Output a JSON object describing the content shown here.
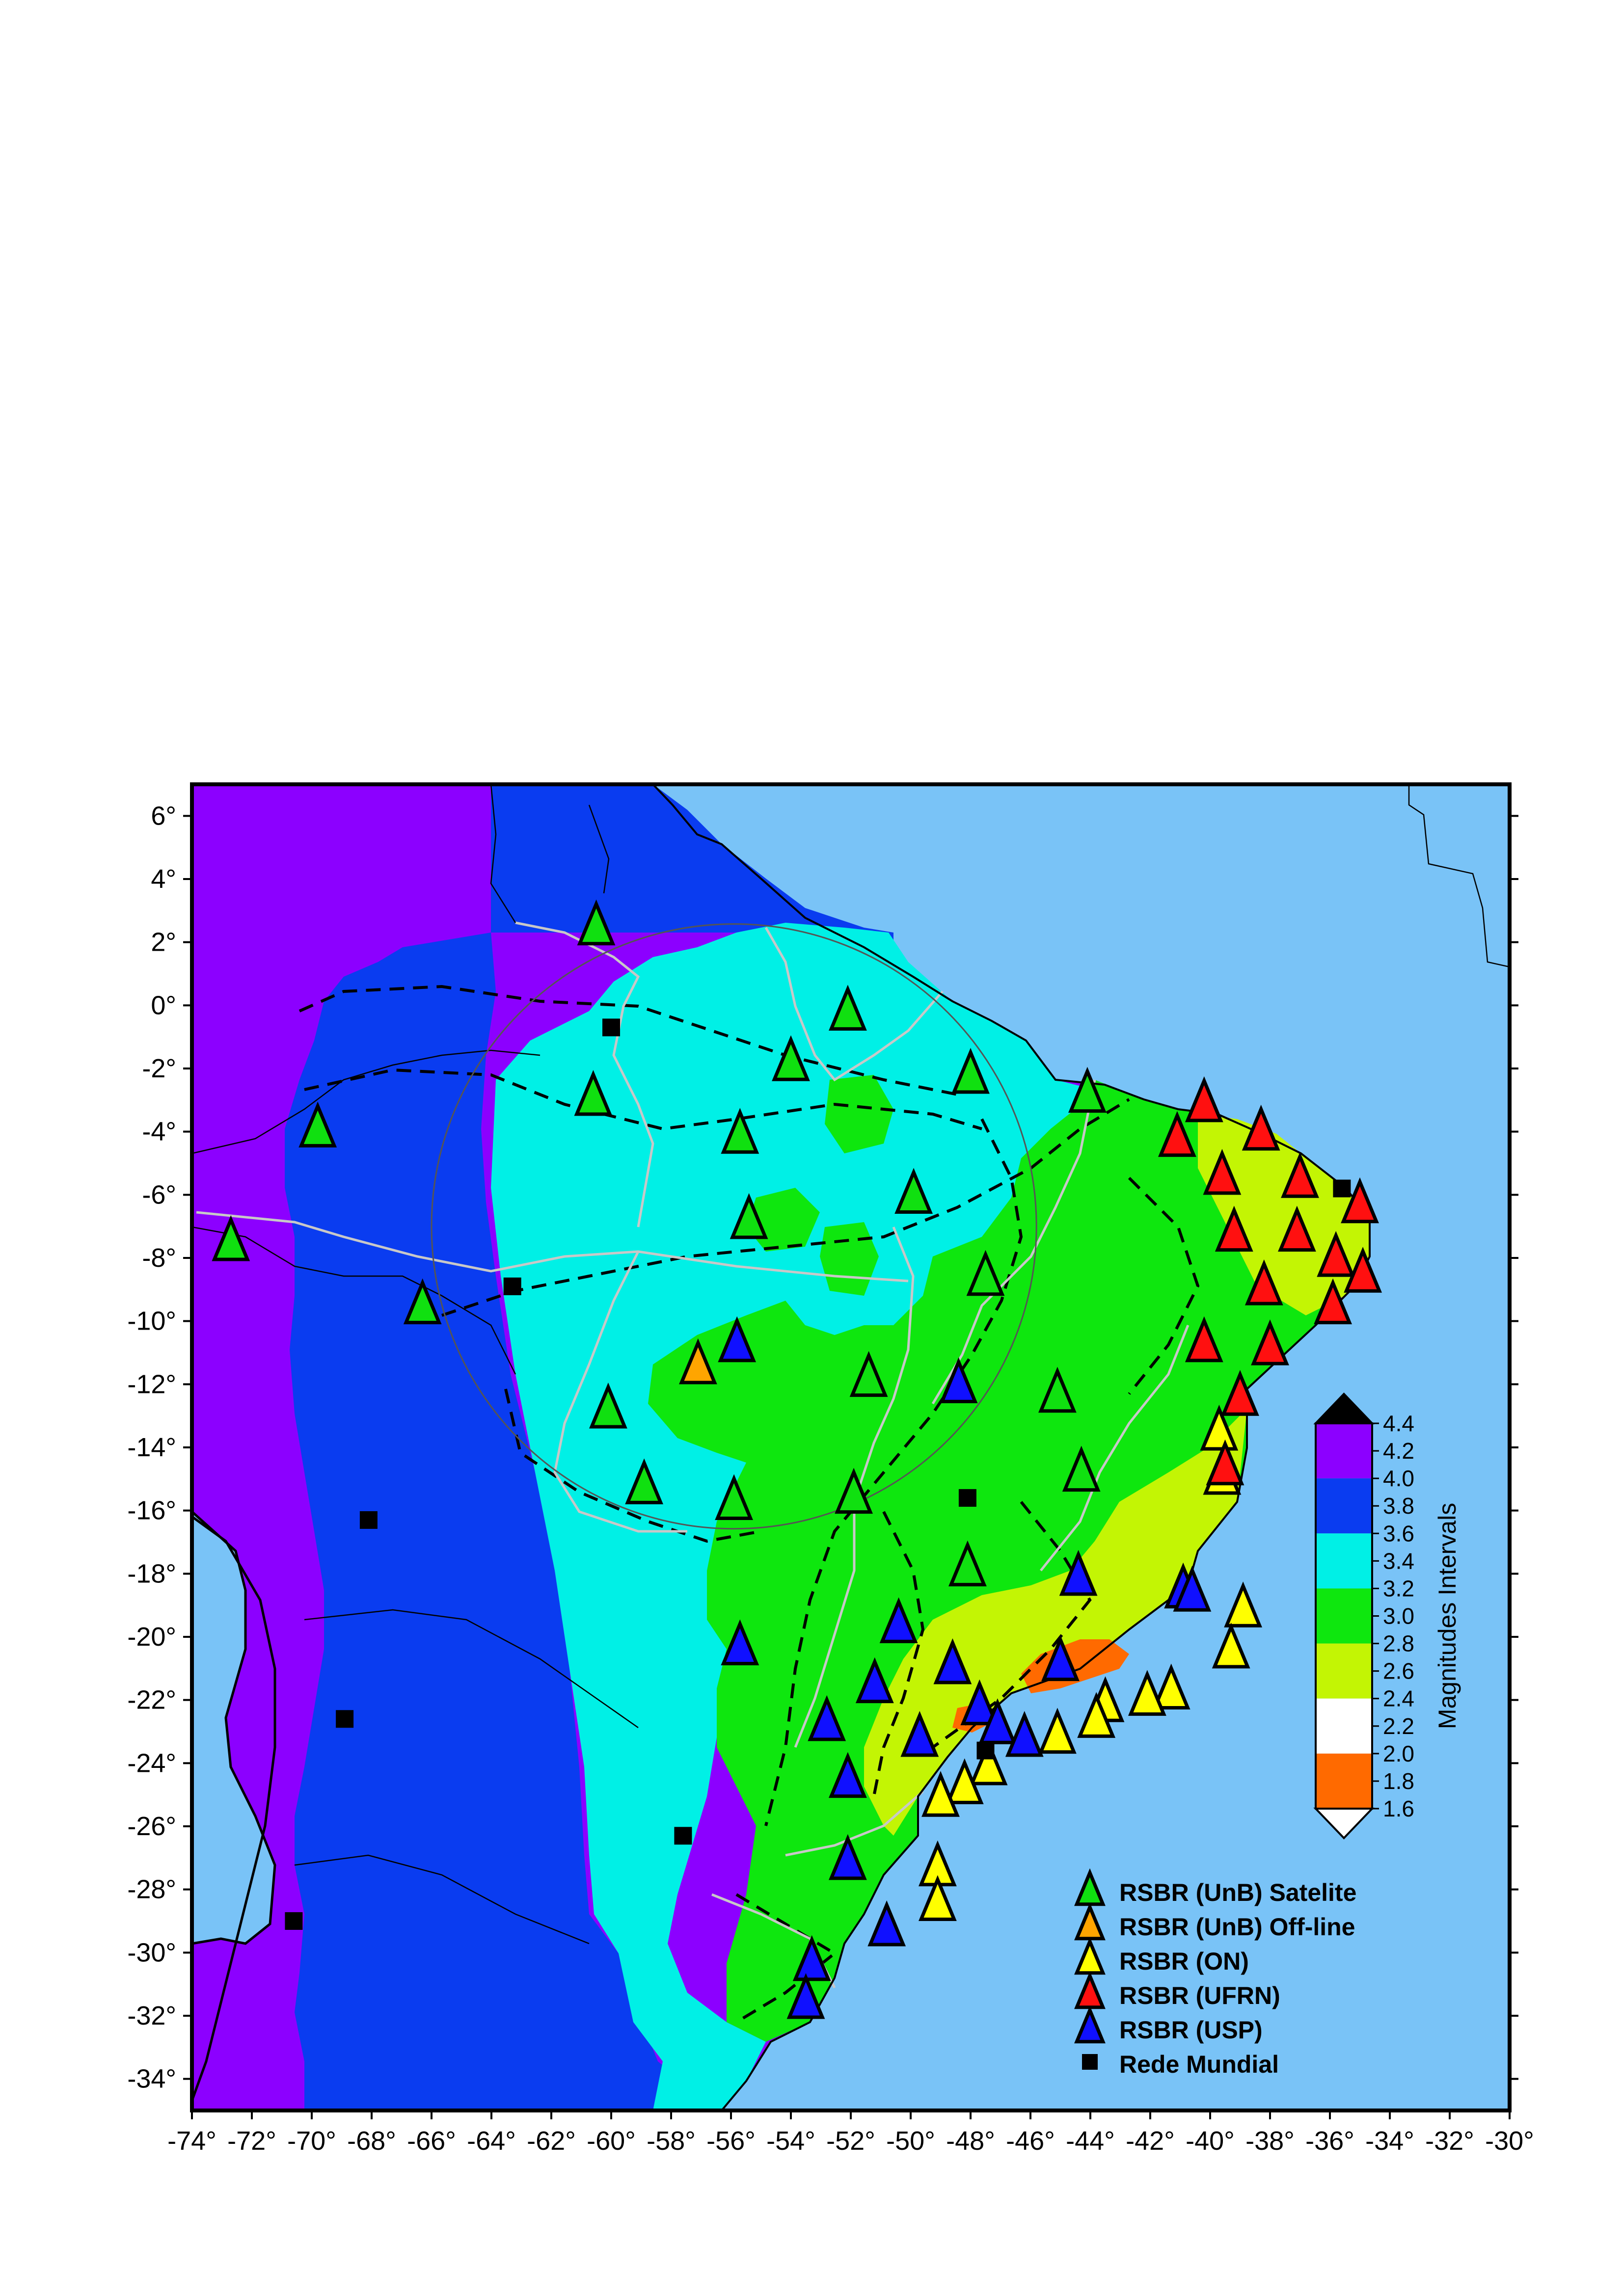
{
  "map": {
    "lon_range": [
      -74,
      -30
    ],
    "lat_range": [
      -35,
      7
    ],
    "x_ticks": [
      "-74°",
      "-72°",
      "-70°",
      "-68°",
      "-66°",
      "-64°",
      "-62°",
      "-60°",
      "-58°",
      "-56°",
      "-54°",
      "-52°",
      "-50°",
      "-48°",
      "-46°",
      "-44°",
      "-42°",
      "-40°",
      "-38°",
      "-36°",
      "-34°",
      "-32°",
      "-30°"
    ],
    "y_ticks": [
      "6°",
      "4°",
      "2°",
      "0°",
      "-2°",
      "-4°",
      "-6°",
      "-8°",
      "-10°",
      "-12°",
      "-14°",
      "-16°",
      "-18°",
      "-20°",
      "-22°",
      "-24°",
      "-26°",
      "-28°",
      "-30°",
      "-32°",
      "-34°"
    ],
    "ocean_color": "#79c3f7",
    "circle_center": [
      -55.9,
      -7.0
    ],
    "circle_radius_deg": 10.1
  },
  "colorscale": {
    "title": "Magnitudes Intervals",
    "labels": [
      "4.4",
      "4.2",
      "4.0",
      "3.8",
      "3.6",
      "3.4",
      "3.2",
      "3.0",
      "2.8",
      "2.6",
      "2.4",
      "2.2",
      "2.0",
      "1.8",
      "1.6"
    ],
    "bands": [
      {
        "from": 4.0,
        "to": 4.4,
        "color": "#8c00ff"
      },
      {
        "from": 3.6,
        "to": 4.0,
        "color": "#0a3cf0"
      },
      {
        "from": 3.2,
        "to": 3.6,
        "color": "#00f0e6"
      },
      {
        "from": 2.8,
        "to": 3.2,
        "color": "#0ee70e"
      },
      {
        "from": 2.4,
        "to": 2.8,
        "color": "#c3f504"
      },
      {
        "from": 2.0,
        "to": 2.4,
        "color": "#ffffff"
      },
      {
        "from": 1.6,
        "to": 2.0,
        "color": "#ff6a00"
      }
    ],
    "over_color": "#000000",
    "under_color": "#ffffff"
  },
  "legend": {
    "items": [
      {
        "label": "RSBR (UnB) Satelite",
        "color": "#10e010",
        "marker": "triangle"
      },
      {
        "label": "RSBR (UnB) Off-line",
        "color": "#ffa500",
        "marker": "triangle"
      },
      {
        "label": "RSBR (ON)",
        "color": "#ffff00",
        "marker": "triangle"
      },
      {
        "label": "RSBR (UFRN)",
        "color": "#ff1010",
        "marker": "triangle"
      },
      {
        "label": "RSBR (USP)",
        "color": "#1010ff",
        "marker": "triangle"
      },
      {
        "label": "Rede Mundial",
        "color": "#000000",
        "marker": "square"
      }
    ]
  },
  "stations": {
    "unb_satelite": [
      [
        -72.7,
        -7.6
      ],
      [
        -69.8,
        -4.0
      ],
      [
        -66.3,
        -9.6
      ],
      [
        -60.5,
        2.4
      ],
      [
        -60.6,
        -3.0
      ],
      [
        -60.1,
        -12.9
      ],
      [
        -58.9,
        -15.3
      ],
      [
        -55.9,
        -15.8
      ],
      [
        -55.7,
        -4.2
      ],
      [
        -55.4,
        -6.9
      ],
      [
        -54.0,
        -1.9
      ],
      [
        -52.1,
        -0.3
      ],
      [
        -51.4,
        -11.9
      ],
      [
        -51.9,
        -15.6
      ],
      [
        -49.9,
        -6.1
      ],
      [
        -48.0,
        -2.3
      ],
      [
        -47.5,
        -8.7
      ],
      [
        -48.1,
        -17.9
      ],
      [
        -45.1,
        -12.4
      ],
      [
        -44.1,
        -2.9
      ],
      [
        -44.3,
        -14.9
      ]
    ],
    "unb_offline": [
      [
        -57.1,
        -11.5
      ]
    ],
    "on": [
      [
        -39.7,
        -13.6
      ],
      [
        -39.6,
        -15.0
      ],
      [
        -38.9,
        -19.2
      ],
      [
        -39.3,
        -20.5
      ],
      [
        -41.3,
        -21.8
      ],
      [
        -42.1,
        -22.0
      ],
      [
        -43.5,
        -22.2
      ],
      [
        -43.8,
        -22.7
      ],
      [
        -45.1,
        -23.2
      ],
      [
        -47.4,
        -24.2
      ],
      [
        -48.2,
        -24.8
      ],
      [
        -49.0,
        -25.2
      ],
      [
        -49.1,
        -27.4
      ],
      [
        -49.1,
        -28.5
      ]
    ],
    "ufrn": [
      [
        -40.2,
        -3.2
      ],
      [
        -41.1,
        -4.3
      ],
      [
        -38.3,
        -4.1
      ],
      [
        -39.6,
        -5.5
      ],
      [
        -37.0,
        -5.6
      ],
      [
        -35.0,
        -6.4
      ],
      [
        -39.2,
        -7.3
      ],
      [
        -37.1,
        -7.3
      ],
      [
        -35.8,
        -8.1
      ],
      [
        -34.9,
        -8.6
      ],
      [
        -38.2,
        -9.0
      ],
      [
        -35.9,
        -9.6
      ],
      [
        -38.0,
        -10.9
      ],
      [
        -40.2,
        -10.8
      ],
      [
        -39.0,
        -12.5
      ],
      [
        -39.5,
        -14.7
      ]
    ],
    "usp": [
      [
        -55.8,
        -10.8
      ],
      [
        -48.4,
        -12.1
      ],
      [
        -44.4,
        -18.2
      ],
      [
        -40.9,
        -18.6
      ],
      [
        -40.6,
        -18.7
      ],
      [
        -50.4,
        -19.7
      ],
      [
        -55.7,
        -20.4
      ],
      [
        -48.6,
        -21.0
      ],
      [
        -45.0,
        -20.9
      ],
      [
        -51.2,
        -21.6
      ],
      [
        -52.8,
        -22.8
      ],
      [
        -47.7,
        -22.3
      ],
      [
        -47.1,
        -22.9
      ],
      [
        -49.7,
        -23.3
      ],
      [
        -46.2,
        -23.3
      ],
      [
        -52.1,
        -24.6
      ],
      [
        -52.1,
        -27.2
      ],
      [
        -50.8,
        -29.3
      ],
      [
        -53.3,
        -30.4
      ],
      [
        -53.5,
        -31.6
      ]
    ],
    "rede_mundial": [
      [
        -60.0,
        -0.7
      ],
      [
        -63.3,
        -8.9
      ],
      [
        -35.6,
        -5.8
      ],
      [
        -48.1,
        -15.6
      ],
      [
        -68.1,
        -16.3
      ],
      [
        -68.9,
        -22.6
      ],
      [
        -57.6,
        -26.3
      ],
      [
        -70.6,
        -29.0
      ],
      [
        -47.5,
        -23.6
      ]
    ]
  }
}
